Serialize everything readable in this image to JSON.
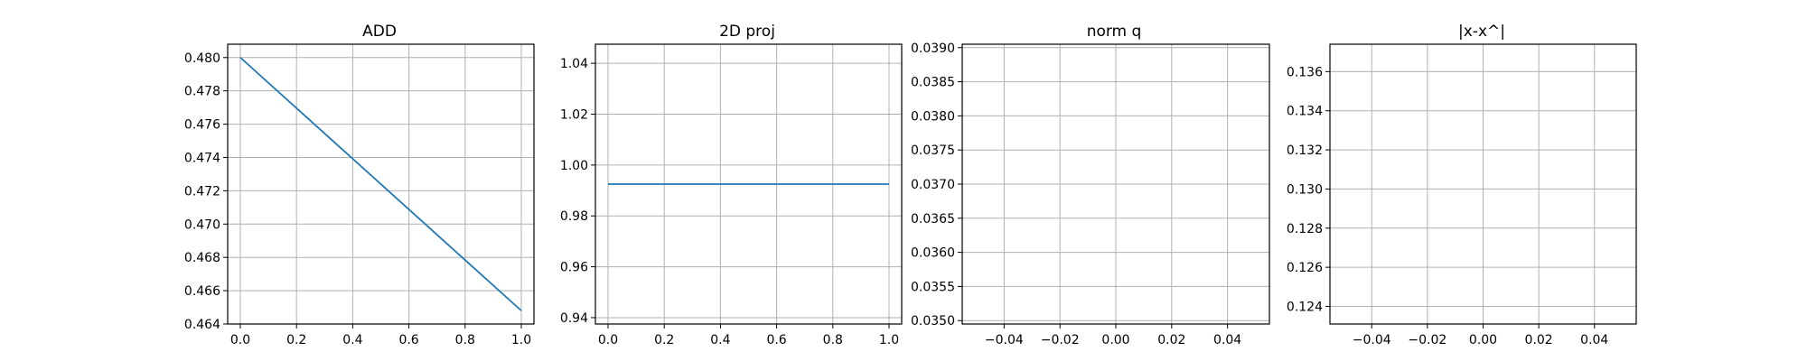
{
  "chart_data": [
    {
      "type": "line",
      "title": "ADD",
      "xlabel": "",
      "ylabel": "",
      "grid": true,
      "xlim": [
        -0.045,
        1.045
      ],
      "ylim": [
        0.464,
        0.4808
      ],
      "xticks": [
        0.0,
        0.2,
        0.4,
        0.6,
        0.8,
        1.0
      ],
      "xtick_labels": [
        "0.0",
        "0.2",
        "0.4",
        "0.6",
        "0.8",
        "1.0"
      ],
      "yticks": [
        0.464,
        0.466,
        0.468,
        0.47,
        0.472,
        0.474,
        0.476,
        0.478,
        0.48
      ],
      "ytick_labels": [
        "0.464",
        "0.466",
        "0.468",
        "0.470",
        "0.472",
        "0.474",
        "0.476",
        "0.478",
        "0.480"
      ],
      "series": [
        {
          "x": [
            0.0,
            1.0
          ],
          "y": [
            0.48,
            0.4648
          ],
          "color": "#1f77b4"
        }
      ]
    },
    {
      "type": "line",
      "title": "2D proj",
      "xlabel": "",
      "ylabel": "",
      "grid": true,
      "xlim": [
        -0.045,
        1.045
      ],
      "ylim": [
        0.9375,
        1.0475
      ],
      "xticks": [
        0.0,
        0.2,
        0.4,
        0.6,
        0.8,
        1.0
      ],
      "xtick_labels": [
        "0.0",
        "0.2",
        "0.4",
        "0.6",
        "0.8",
        "1.0"
      ],
      "yticks": [
        0.94,
        0.96,
        0.98,
        1.0,
        1.02,
        1.04
      ],
      "ytick_labels": [
        "0.94",
        "0.96",
        "0.98",
        "1.00",
        "1.02",
        "1.04"
      ],
      "series": [
        {
          "x": [
            0.0,
            1.0
          ],
          "y": [
            0.9925,
            0.9925
          ],
          "color": "#1f77b4"
        }
      ]
    },
    {
      "type": "line",
      "title": "norm q",
      "xlabel": "",
      "ylabel": "",
      "grid": true,
      "xlim": [
        -0.055,
        0.055
      ],
      "ylim": [
        0.03495,
        0.03905
      ],
      "xticks": [
        -0.04,
        -0.02,
        0.0,
        0.02,
        0.04
      ],
      "xtick_labels": [
        "−0.04",
        "−0.02",
        "0.00",
        "0.02",
        "0.04"
      ],
      "yticks": [
        0.035,
        0.0355,
        0.036,
        0.0365,
        0.037,
        0.0375,
        0.038,
        0.0385,
        0.039
      ],
      "ytick_labels": [
        "0.0350",
        "0.0355",
        "0.0360",
        "0.0365",
        "0.0370",
        "0.0375",
        "0.0380",
        "0.0385",
        "0.0390"
      ],
      "series": []
    },
    {
      "type": "line",
      "title": "|x-x^|",
      "xlabel": "",
      "ylabel": "",
      "grid": true,
      "xlim": [
        -0.055,
        0.055
      ],
      "ylim": [
        0.1231,
        0.1374
      ],
      "xticks": [
        -0.04,
        -0.02,
        0.0,
        0.02,
        0.04
      ],
      "xtick_labels": [
        "−0.04",
        "−0.02",
        "0.00",
        "0.02",
        "0.04"
      ],
      "yticks": [
        0.124,
        0.126,
        0.128,
        0.13,
        0.132,
        0.134,
        0.136
      ],
      "ytick_labels": [
        "0.124",
        "0.126",
        "0.128",
        "0.130",
        "0.132",
        "0.134",
        "0.136"
      ],
      "series": []
    }
  ]
}
